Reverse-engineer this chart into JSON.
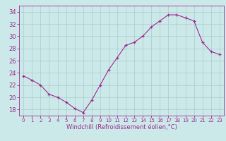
{
  "x": [
    0,
    1,
    2,
    3,
    4,
    5,
    6,
    7,
    8,
    9,
    10,
    11,
    12,
    13,
    14,
    15,
    16,
    17,
    18,
    19,
    20,
    21,
    22,
    23
  ],
  "y": [
    23.5,
    22.8,
    22.0,
    20.5,
    20.0,
    19.2,
    18.2,
    17.5,
    19.5,
    22.0,
    24.5,
    26.5,
    28.5,
    29.0,
    30.0,
    31.5,
    32.5,
    33.5,
    33.5,
    33.0,
    32.5,
    29.0,
    27.5,
    27.0
  ],
  "line_color": "#9b2d8e",
  "marker": "+",
  "marker_size": 3,
  "bg_color": "#cce9e9",
  "grid_color": "#aacccc",
  "axis_color": "#9b2d8e",
  "tick_color": "#9b2d8e",
  "xlabel": "Windchill (Refroidissement éolien,°C)",
  "xlabel_color": "#9b2d8e",
  "ylim": [
    17,
    35
  ],
  "yticks": [
    18,
    20,
    22,
    24,
    26,
    28,
    30,
    32,
    34
  ],
  "xticks": [
    0,
    1,
    2,
    3,
    4,
    5,
    6,
    7,
    8,
    9,
    10,
    11,
    12,
    13,
    14,
    15,
    16,
    17,
    18,
    19,
    20,
    21,
    22,
    23
  ],
  "xlim": [
    -0.5,
    23.5
  ]
}
